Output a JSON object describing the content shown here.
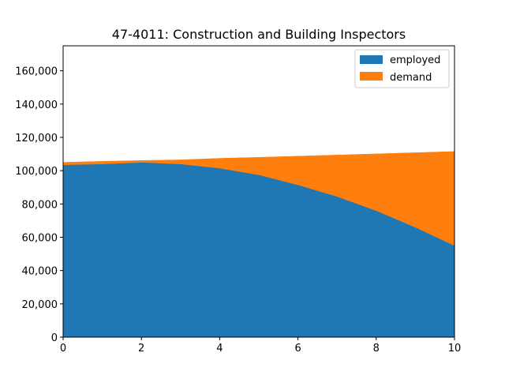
{
  "chart_data": {
    "type": "area",
    "stacked": true,
    "title": "47-4011: Construction and Building Inspectors",
    "xlabel": "",
    "ylabel": "",
    "x": [
      0,
      1,
      2,
      3,
      4,
      5,
      6,
      7,
      8,
      9,
      10
    ],
    "xlim": [
      0,
      10
    ],
    "ylim": [
      0,
      175000
    ],
    "xticks": [
      0,
      2,
      4,
      6,
      8,
      10
    ],
    "xtick_labels": [
      "0",
      "2",
      "4",
      "6",
      "8",
      "10"
    ],
    "yticks": [
      0,
      20000,
      40000,
      60000,
      80000,
      100000,
      120000,
      140000,
      160000
    ],
    "ytick_labels": [
      "0",
      "20,000",
      "40,000",
      "60,000",
      "80,000",
      "100,000",
      "120,000",
      "140,000",
      "160,000"
    ],
    "grid": false,
    "legend_position": "top-right",
    "series": [
      {
        "name": "employed",
        "color": "#1f77b4",
        "values": [
          103500,
          104000,
          105000,
          104000,
          101500,
          97500,
          91500,
          84500,
          76000,
          66000,
          55000
        ]
      },
      {
        "name": "demand",
        "color": "#ff7f0e",
        "values": [
          1500,
          1600,
          1100,
          2500,
          5900,
          10500,
          17200,
          24900,
          34100,
          44800,
          56500
        ]
      }
    ]
  }
}
